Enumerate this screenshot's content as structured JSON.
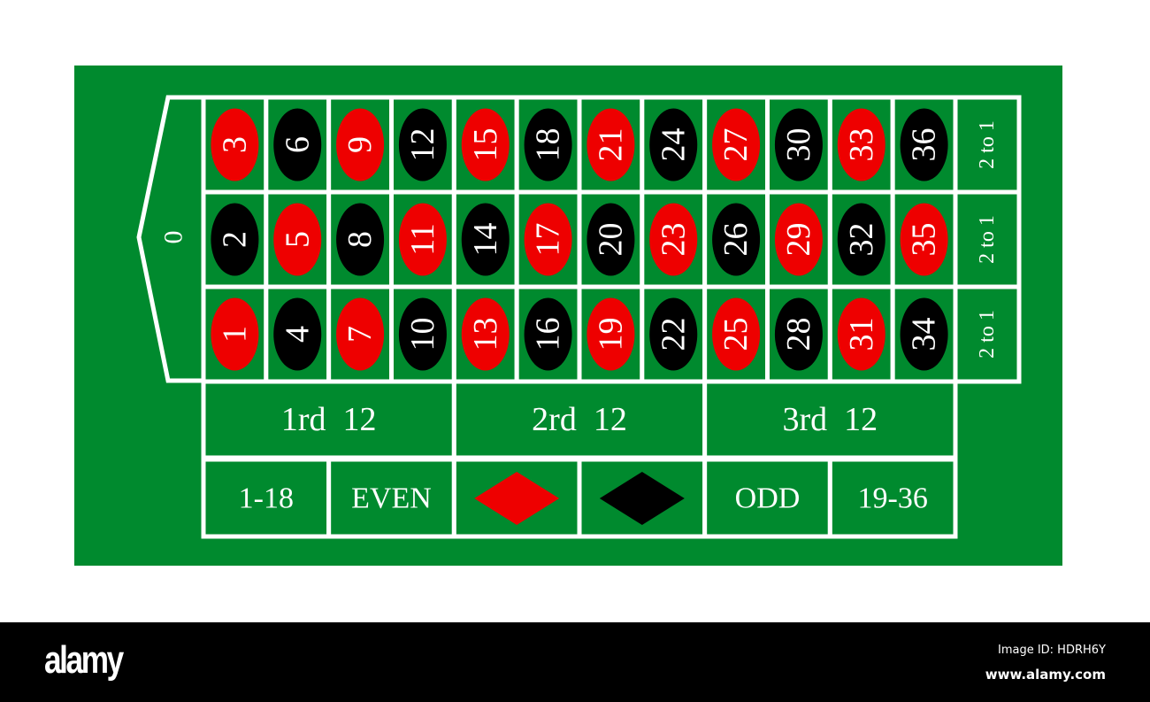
{
  "colors": {
    "felt": "#008a2e",
    "red": "#ee0000",
    "black": "#000000",
    "line": "#ffffff"
  },
  "zero": "0",
  "rows": [
    [
      {
        "n": "3",
        "c": "red"
      },
      {
        "n": "6",
        "c": "black"
      },
      {
        "n": "9",
        "c": "red"
      },
      {
        "n": "12",
        "c": "black"
      },
      {
        "n": "15",
        "c": "red"
      },
      {
        "n": "18",
        "c": "black"
      },
      {
        "n": "21",
        "c": "red"
      },
      {
        "n": "24",
        "c": "black"
      },
      {
        "n": "27",
        "c": "red"
      },
      {
        "n": "30",
        "c": "black"
      },
      {
        "n": "33",
        "c": "red"
      },
      {
        "n": "36",
        "c": "black"
      }
    ],
    [
      {
        "n": "2",
        "c": "black"
      },
      {
        "n": "5",
        "c": "red"
      },
      {
        "n": "8",
        "c": "black"
      },
      {
        "n": "11",
        "c": "red"
      },
      {
        "n": "14",
        "c": "black"
      },
      {
        "n": "17",
        "c": "red"
      },
      {
        "n": "20",
        "c": "black"
      },
      {
        "n": "23",
        "c": "red"
      },
      {
        "n": "26",
        "c": "black"
      },
      {
        "n": "29",
        "c": "red"
      },
      {
        "n": "32",
        "c": "black"
      },
      {
        "n": "35",
        "c": "red"
      }
    ],
    [
      {
        "n": "1",
        "c": "red"
      },
      {
        "n": "4",
        "c": "black"
      },
      {
        "n": "7",
        "c": "red"
      },
      {
        "n": "10",
        "c": "black"
      },
      {
        "n": "13",
        "c": "red"
      },
      {
        "n": "16",
        "c": "black"
      },
      {
        "n": "19",
        "c": "red"
      },
      {
        "n": "22",
        "c": "black"
      },
      {
        "n": "25",
        "c": "red"
      },
      {
        "n": "28",
        "c": "black"
      },
      {
        "n": "31",
        "c": "red"
      },
      {
        "n": "34",
        "c": "black"
      }
    ]
  ],
  "columns": [
    "2 to 1",
    "2 to 1",
    "2 to 1"
  ],
  "dozens": [
    "1rd  12",
    "2rd  12",
    "3rd  12"
  ],
  "outside": [
    {
      "label": "1-18"
    },
    {
      "label": "EVEN"
    },
    {
      "label": "",
      "diamond": "red"
    },
    {
      "label": "",
      "diamond": "black"
    },
    {
      "label": "ODD"
    },
    {
      "label": "19-36"
    }
  ],
  "footer": {
    "logo": "alamy",
    "image_id": "Image ID: HDRH6Y",
    "site": "www.alamy.com"
  }
}
